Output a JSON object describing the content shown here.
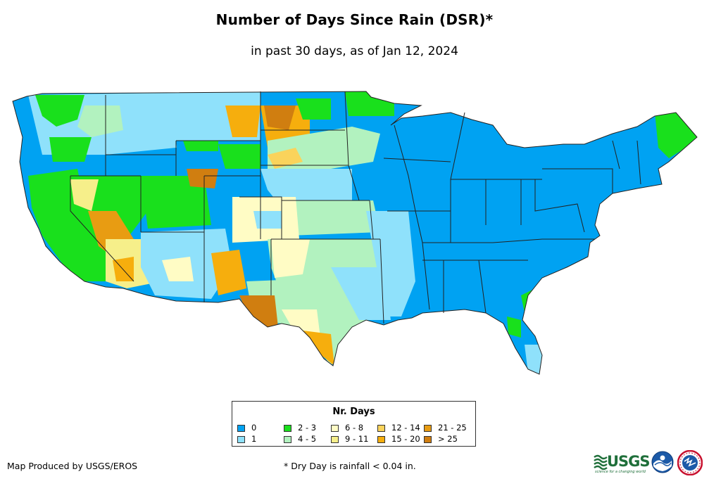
{
  "title": "Number of Days Since Rain (DSR)*",
  "subtitle": "in past 30 days, as of Jan 12, 2024",
  "legend": {
    "title": "Nr. Days",
    "items": [
      {
        "label": "0",
        "color": "#00a2f2"
      },
      {
        "label": "1",
        "color": "#8fe1fb"
      },
      {
        "label": "2 - 3",
        "color": "#19e01c"
      },
      {
        "label": "4 - 5",
        "color": "#b2f2bf"
      },
      {
        "label": "6 - 8",
        "color": "#fffcc5"
      },
      {
        "label": "9 - 11",
        "color": "#f6ef8a"
      },
      {
        "label": "12 - 14",
        "color": "#fad35b"
      },
      {
        "label": "15 - 20",
        "color": "#f6ae0d"
      },
      {
        "label": "21 - 25",
        "color": "#e89c12"
      },
      {
        "label": "> 25",
        "color": "#d07e10"
      }
    ]
  },
  "credit": "Map Produced by USGS/EROS",
  "footnote": "* Dry Day is rainfall < 0.04 in.",
  "logos": {
    "usgs": "USGS",
    "usgs_tagline": "science for a changing world",
    "noaa": "NOAA"
  }
}
